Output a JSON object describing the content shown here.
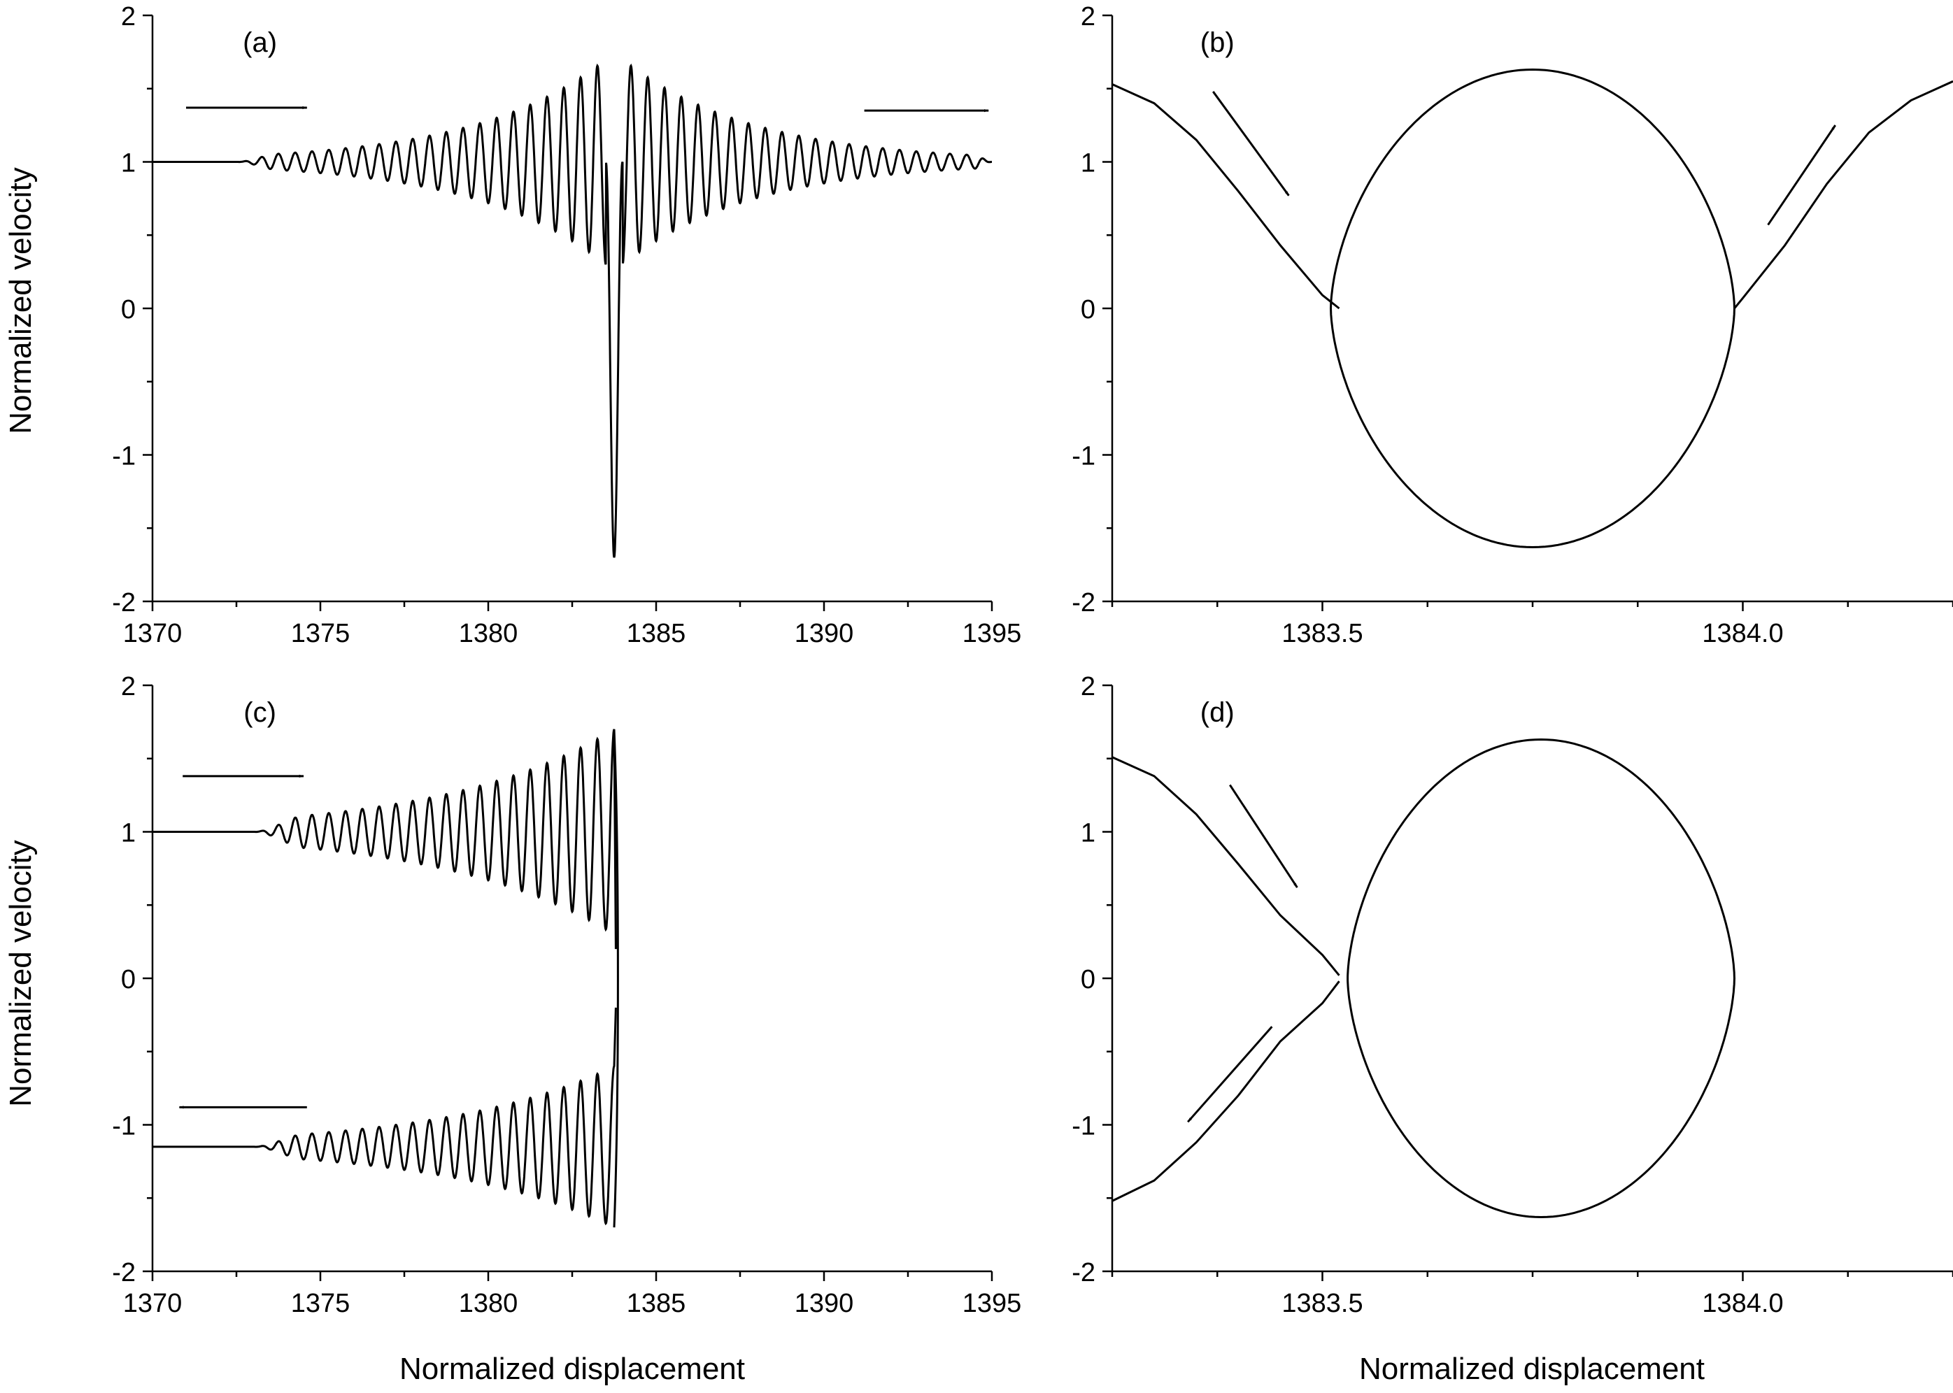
{
  "figure": {
    "ylabel": "Normalized velocity",
    "xlabel": "Normalized displacement"
  },
  "chart_data": [
    {
      "id": "a",
      "panel_label": "(a)",
      "type": "line",
      "xlim": [
        1370,
        1395
      ],
      "ylim": [
        -2,
        2
      ],
      "xticks": [
        1370,
        1375,
        1380,
        1385,
        1390,
        1395
      ],
      "yticks": [
        -2,
        -1,
        0,
        1,
        2
      ],
      "xticklabels": [
        "1370",
        "1375",
        "1380",
        "1385",
        "1390",
        "1395"
      ],
      "yticklabels": [
        "-2",
        "-1",
        "0",
        "1",
        "2"
      ],
      "series": [
        {
          "kind": "trajectory",
          "x_range": [
            1370,
            1395
          ],
          "baseline": 1.0,
          "oscillation_onset": 1372.5,
          "center": 1383.75,
          "peak_amplitude": 0.7,
          "oscillation_period": 0.5,
          "dip_min": -1.7
        }
      ],
      "arrows": [
        {
          "from": [
            1371.0,
            1.37
          ],
          "to": [
            1374.6,
            1.37
          ]
        },
        {
          "from": [
            1391.2,
            1.35
          ],
          "to": [
            1394.9,
            1.35
          ]
        }
      ]
    },
    {
      "id": "b",
      "panel_label": "(b)",
      "type": "line",
      "xlim": [
        1383.25,
        1384.25
      ],
      "ylim": [
        -2,
        2
      ],
      "xticks": [
        1383.5,
        1384.0
      ],
      "xticklabels": [
        "1383.5",
        "1384.0"
      ],
      "yticks": [
        -2,
        -1,
        0,
        1,
        2
      ],
      "yticklabels": [
        "-2",
        "-1",
        "0",
        "1",
        "2"
      ],
      "series": [
        {
          "kind": "separatrix_loop",
          "x_left": 1383.52,
          "x_right": 1383.99,
          "center": 1383.75,
          "amplitude": 1.63
        },
        {
          "kind": "branch",
          "points": [
            [
              1383.25,
              1.53
            ],
            [
              1383.3,
              1.4
            ],
            [
              1383.35,
              1.15
            ],
            [
              1383.4,
              0.8
            ],
            [
              1383.45,
              0.43
            ],
            [
              1383.5,
              0.09
            ],
            [
              1383.52,
              0.0
            ]
          ]
        },
        {
          "kind": "branch",
          "points": [
            [
              1383.99,
              0.0
            ],
            [
              1384.0,
              0.07
            ],
            [
              1384.05,
              0.43
            ],
            [
              1384.1,
              0.85
            ],
            [
              1384.15,
              1.2
            ],
            [
              1384.2,
              1.42
            ],
            [
              1384.25,
              1.55
            ]
          ]
        }
      ],
      "arrows": [
        {
          "from": [
            1383.37,
            1.48
          ],
          "to": [
            1383.46,
            0.77
          ]
        },
        {
          "from": [
            1384.03,
            0.57
          ],
          "to": [
            1384.11,
            1.25
          ]
        }
      ]
    },
    {
      "id": "c",
      "panel_label": "(c)",
      "type": "line",
      "xlim": [
        1370,
        1395
      ],
      "ylim": [
        -2,
        2
      ],
      "xticks": [
        1370,
        1375,
        1380,
        1385,
        1390,
        1395
      ],
      "yticks": [
        -2,
        -1,
        0,
        1,
        2
      ],
      "xticklabels": [
        "1370",
        "1375",
        "1380",
        "1385",
        "1390",
        "1395"
      ],
      "yticklabels": [
        "-2",
        "-1",
        "0",
        "1",
        "2"
      ],
      "series": [
        {
          "kind": "incoming",
          "x_range": [
            1370,
            1383.75
          ],
          "baseline": 1.0,
          "oscillation_onset": 1373.0,
          "peak_amplitude": 0.7,
          "oscillation_period": 0.5
        },
        {
          "kind": "reflected",
          "x_range": [
            1370,
            1383.75
          ],
          "baseline": -1.15,
          "oscillation_onset": 1373.0,
          "peak_amplitude": 0.55,
          "oscillation_period": 0.5
        }
      ],
      "arrows": [
        {
          "from": [
            1370.9,
            1.38
          ],
          "to": [
            1374.5,
            1.38
          ]
        },
        {
          "from": [
            1374.6,
            -0.88
          ],
          "to": [
            1370.8,
            -0.88
          ]
        }
      ]
    },
    {
      "id": "d",
      "panel_label": "(d)",
      "type": "line",
      "xlim": [
        1383.25,
        1384.25
      ],
      "ylim": [
        -2,
        2
      ],
      "xticks": [
        1383.5,
        1384.0
      ],
      "xticklabels": [
        "1383.5",
        "1384.0"
      ],
      "yticks": [
        -2,
        -1,
        0,
        1,
        2
      ],
      "yticklabels": [
        "-2",
        "-1",
        "0",
        "1",
        "2"
      ],
      "series": [
        {
          "kind": "separatrix_loop",
          "x_left": 1383.52,
          "x_right": 1383.99,
          "center": 1383.76,
          "amplitude": 1.63
        },
        {
          "kind": "branch",
          "points": [
            [
              1383.25,
              1.51
            ],
            [
              1383.3,
              1.38
            ],
            [
              1383.35,
              1.12
            ],
            [
              1383.4,
              0.78
            ],
            [
              1383.45,
              0.43
            ],
            [
              1383.5,
              0.16
            ],
            [
              1383.52,
              0.02
            ]
          ]
        },
        {
          "kind": "branch",
          "points": [
            [
              1383.52,
              -0.02
            ],
            [
              1383.5,
              -0.17
            ],
            [
              1383.45,
              -0.43
            ],
            [
              1383.4,
              -0.8
            ],
            [
              1383.35,
              -1.12
            ],
            [
              1383.3,
              -1.38
            ],
            [
              1383.25,
              -1.52
            ]
          ]
        }
      ],
      "arrows": [
        {
          "from": [
            1383.39,
            1.32
          ],
          "to": [
            1383.47,
            0.62
          ]
        },
        {
          "from": [
            1383.44,
            -0.33
          ],
          "to": [
            1383.34,
            -0.98
          ]
        }
      ]
    }
  ]
}
